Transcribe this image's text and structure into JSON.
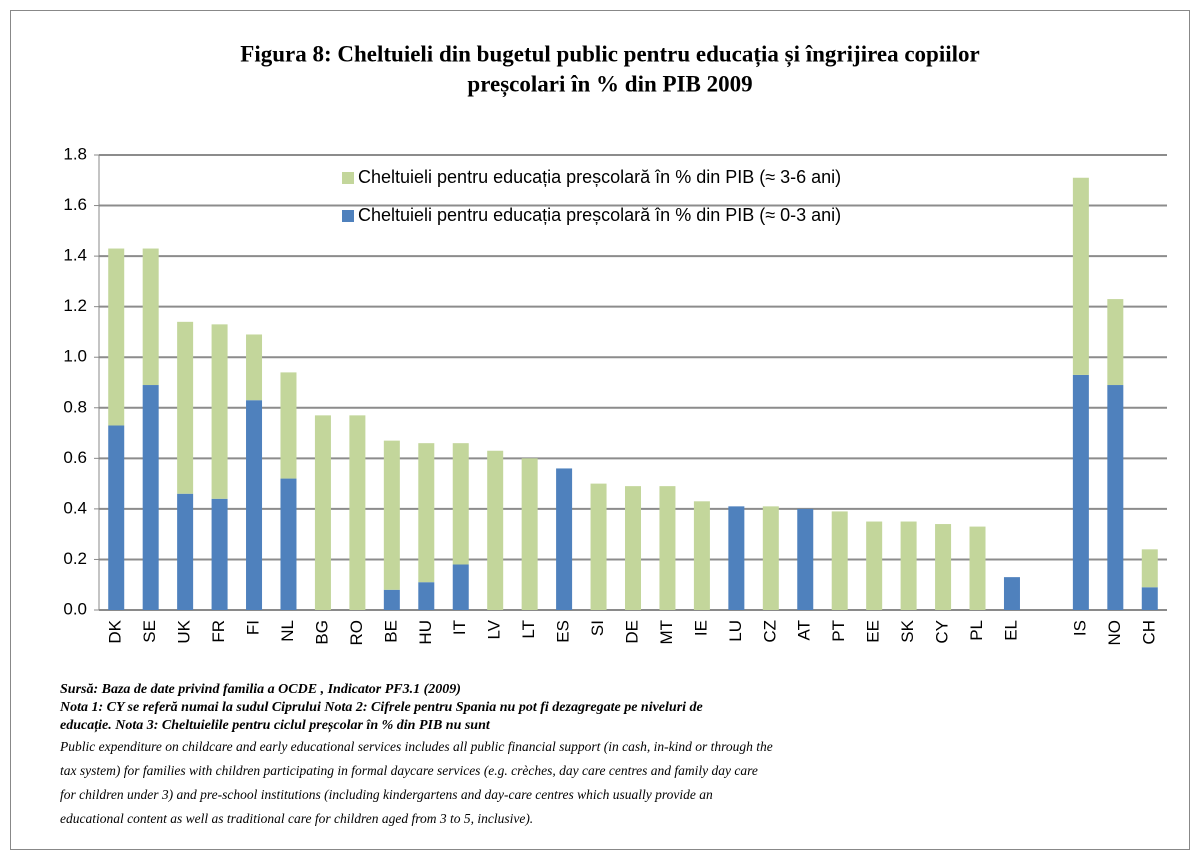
{
  "chart_data": {
    "type": "stacked_bar",
    "title": [
      "Figura 8: Cheltuieli din bugetul public pentru educația și îngrijirea copiilor",
      "preșcolari în % din PIB 2009"
    ],
    "categories": [
      "DK",
      "SE",
      "UK",
      "FR",
      "FI",
      "NL",
      "BG",
      "RO",
      "BE",
      "HU",
      "IT",
      "LV",
      "LT",
      "ES",
      "SI",
      "DE",
      "MT",
      "IE",
      "LU",
      "CZ",
      "AT",
      "PT",
      "EE",
      "SK",
      "CY",
      "PL",
      "EL",
      null,
      "IS",
      "NO",
      "CH"
    ],
    "series": [
      {
        "name": "Cheltuieli pentru educația preșcolară în % din PIB (≈ 0-3 ani)",
        "color": "#4f81bd",
        "values": [
          0.73,
          0.89,
          0.46,
          0.44,
          0.83,
          0.52,
          0,
          0,
          0.08,
          0.11,
          0.18,
          0,
          0,
          0.56,
          0,
          0,
          0,
          0,
          0.41,
          0,
          0.4,
          0,
          0,
          0,
          0,
          0,
          0.13,
          null,
          0.93,
          0.89,
          0.09
        ]
      },
      {
        "name": "Cheltuieli pentru educația preșcolară în % din PIB (≈ 3-6 ani)",
        "color": "#c3d69b",
        "values": [
          0.7,
          0.54,
          0.68,
          0.69,
          0.26,
          0.42,
          0.77,
          0.77,
          0.59,
          0.55,
          0.48,
          0.63,
          0.6,
          0,
          0.5,
          0.49,
          0.49,
          0.43,
          0,
          0.41,
          0,
          0.39,
          0.35,
          0.35,
          0.34,
          0.33,
          0,
          null,
          0.78,
          0.34,
          0.15
        ]
      }
    ],
    "ylim": [
      0,
      1.8
    ],
    "yticks": [
      {
        "value": 0,
        "label": "0.0"
      },
      0.2,
      0.4,
      0.6,
      0.8,
      {
        "value": 1,
        "label": "1.0"
      },
      1.2,
      1.4,
      1.6,
      1.8
    ],
    "grid": true,
    "legend": "top-right",
    "notes": [
      "Sursă: Baza de date privind familia a OCDE , Indicator PF3.1 (2009)",
      "Nota 1: CY se referă numai la sudul Ciprului Nota 2: Cifrele pentru Spania nu pot fi dezagregate pe niveluri de",
      "educație. Nota 3: Cheltuielile pentru ciclul preșcolar în % din PIB nu sunt"
    ],
    "description": [
      "Public expenditure on childcare and early educational services includes all public financial support (in cash, in-kind or through the",
      "tax system) for families with children participating in formal daycare services (e.g. crèches, day care centres and family day care",
      "for children under 3) and pre-school institutions (including kindergartens and day-care centres which usually provide an",
      "educational content as well as traditional care for children aged from 3 to 5, inclusive)."
    ]
  }
}
